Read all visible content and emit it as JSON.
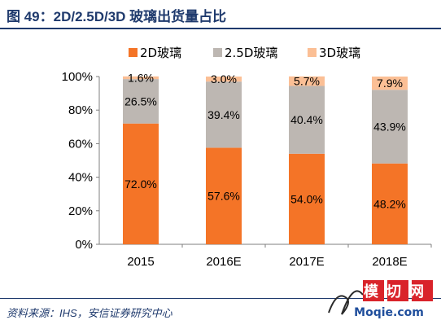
{
  "figure": {
    "title": "图 49：2D/2.5D/3D 玻璃出货量占比",
    "source": "资料来源：IHS，安信证券研究中心"
  },
  "watermark": {
    "main": "模切网",
    "sub": "Moqie.com"
  },
  "chart_data": {
    "type": "bar",
    "stacked": true,
    "categories": [
      "2015",
      "2016E",
      "2017E",
      "2018E"
    ],
    "series": [
      {
        "name": "2D玻璃",
        "color": "#f47427",
        "values": [
          72.0,
          57.6,
          54.0,
          48.2
        ],
        "labels": [
          "72.0%",
          "57.6%",
          "54.0%",
          "48.2%"
        ]
      },
      {
        "name": "2.5D玻璃",
        "color": "#bdb7b2",
        "values": [
          26.5,
          39.4,
          40.4,
          43.9
        ],
        "labels": [
          "26.5%",
          "39.4%",
          "40.4%",
          "43.9%"
        ]
      },
      {
        "name": "3D玻璃",
        "color": "#fbbf95",
        "values": [
          1.6,
          3.0,
          5.7,
          7.9
        ],
        "labels": [
          "1.6%",
          "3.0%",
          "5.7%",
          "7.9%"
        ]
      }
    ],
    "yticks": [
      "0%",
      "20%",
      "40%",
      "60%",
      "80%",
      "100%"
    ],
    "ylim": [
      0,
      100
    ],
    "legend_position": "top"
  }
}
